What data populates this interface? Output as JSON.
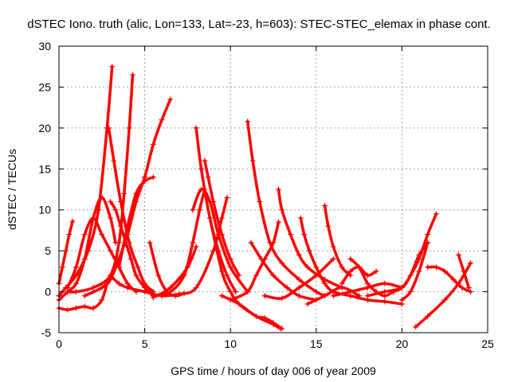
{
  "chart_data": {
    "type": "scatter",
    "title": "dSTEC Iono. truth (alic, Lon=133, Lat=-23, h=603): STEC-STEC_elemax in phase cont.",
    "xlabel": "GPS time / hours of day 006 of year 2009",
    "ylabel": "dSTEC  / TECUs",
    "xlim": [
      0,
      25
    ],
    "ylim": [
      -5,
      30
    ],
    "xticks": [
      0,
      5,
      10,
      15,
      20,
      25
    ],
    "yticks": [
      -5,
      0,
      5,
      10,
      15,
      20,
      25,
      30
    ],
    "grid": true,
    "marker": "+",
    "color": "#ff0000",
    "series": [
      {
        "x": [
          0.0,
          0.2,
          0.4,
          0.6,
          0.8
        ],
        "y": [
          1.0,
          3.0,
          5.0,
          7.0,
          8.6
        ]
      },
      {
        "x": [
          0.0,
          0.4,
          1.0,
          1.7,
          2.3,
          2.8,
          3.1
        ],
        "y": [
          -0.5,
          0.5,
          2.0,
          5.0,
          10.0,
          20.0,
          27.5
        ]
      },
      {
        "x": [
          0.0,
          0.5,
          1.0,
          1.5,
          2.0,
          2.5,
          2.8
        ],
        "y": [
          -2.0,
          -2.2,
          -2.0,
          -1.8,
          -2.0,
          -1.0,
          1.0
        ]
      },
      {
        "x": [
          0.0,
          0.5,
          1.0,
          1.5,
          2.0,
          2.5,
          3.0,
          3.3
        ],
        "y": [
          -1.0,
          0.0,
          1.0,
          4.0,
          9.0,
          11.5,
          9.0,
          6.0
        ]
      },
      {
        "x": [
          0.5,
          1.0,
          1.5,
          2.0,
          2.5,
          3.0,
          3.5,
          4.0,
          4.5
        ],
        "y": [
          0.5,
          3.0,
          7.0,
          9.0,
          7.0,
          5.0,
          3.0,
          1.0,
          0.0
        ]
      },
      {
        "x": [
          0.5,
          1.0,
          2.0,
          3.0,
          3.5,
          3.8,
          4.1,
          4.3
        ],
        "y": [
          0.0,
          0.0,
          0.5,
          2.0,
          6.0,
          12.0,
          20.0,
          26.5
        ]
      },
      {
        "x": [
          2.9,
          3.2,
          3.6,
          4.1,
          4.6,
          5.0,
          5.5
        ],
        "y": [
          20.0,
          16.0,
          11.0,
          6.0,
          3.0,
          1.0,
          0.0
        ]
      },
      {
        "x": [
          3.0,
          3.3,
          3.6,
          3.9,
          4.2,
          4.5,
          5.0,
          5.5
        ],
        "y": [
          11.0,
          10.0,
          8.0,
          6.0,
          4.0,
          2.0,
          0.5,
          -0.5
        ]
      },
      {
        "x": [
          1.5,
          2.5,
          3.0,
          3.5,
          4.0,
          4.5,
          5.0,
          5.5,
          6.0,
          6.5
        ],
        "y": [
          -0.5,
          0.5,
          1.5,
          4.0,
          7.0,
          11.0,
          14.0,
          18.0,
          21.0,
          23.5
        ]
      },
      {
        "x": [
          3.0,
          3.5,
          4.0,
          5.0,
          6.0,
          7.0
        ],
        "y": [
          2.0,
          1.0,
          0.5,
          0.0,
          -0.5,
          -0.3
        ]
      },
      {
        "x": [
          3.5,
          4.0,
          4.5,
          5.0,
          5.5
        ],
        "y": [
          3.0,
          8.0,
          12.0,
          13.5,
          14.0
        ]
      },
      {
        "x": [
          5.3,
          5.8,
          6.3,
          6.8,
          7.3
        ],
        "y": [
          6.0,
          2.0,
          0.0,
          -0.5,
          -0.2
        ]
      },
      {
        "x": [
          5.5,
          6.5,
          7.3,
          7.8,
          8.2,
          8.5
        ],
        "y": [
          -0.5,
          0.0,
          2.0,
          6.0,
          10.0,
          12.5
        ]
      },
      {
        "x": [
          5.5,
          6.5,
          7.5,
          8.0
        ],
        "y": [
          -0.7,
          0.5,
          3.0,
          5.5
        ]
      },
      {
        "x": [
          6.0,
          7.0,
          8.0,
          9.0,
          9.5,
          9.8
        ],
        "y": [
          -0.5,
          -0.3,
          0.5,
          5.0,
          9.0,
          11.5
        ]
      },
      {
        "x": [
          8.0,
          8.3,
          8.8,
          9.3,
          9.8,
          10.3
        ],
        "y": [
          20.0,
          15.0,
          9.0,
          5.0,
          2.0,
          0.0
        ]
      },
      {
        "x": [
          7.8,
          8.3,
          8.8,
          9.3,
          10.0,
          11.0
        ],
        "y": [
          10.0,
          12.5,
          11.0,
          7.0,
          3.0,
          0.0
        ]
      },
      {
        "x": [
          8.5,
          8.7,
          9.0,
          9.5,
          10.0,
          10.5
        ],
        "y": [
          16.0,
          14.0,
          11.0,
          7.0,
          4.0,
          2.0
        ]
      },
      {
        "x": [
          8.8,
          9.5,
          10.0,
          10.5,
          11.5,
          12.5,
          12.9
        ],
        "y": [
          9.0,
          2.5,
          0.0,
          -1.5,
          -3.0,
          -4.0,
          -4.5
        ]
      },
      {
        "x": [
          9.5,
          10.5,
          11.5,
          12.0,
          12.5,
          13.0
        ],
        "y": [
          -0.5,
          -1.5,
          -3.0,
          -3.2,
          -3.8,
          -4.5
        ]
      },
      {
        "x": [
          10.0,
          11.0,
          11.5,
          12.0,
          12.5,
          12.8
        ],
        "y": [
          -1.0,
          0.0,
          2.0,
          4.0,
          6.0,
          8.5
        ]
      },
      {
        "x": [
          11.0,
          11.3,
          11.7,
          12.3,
          13.0,
          14.0,
          15.0,
          15.5
        ],
        "y": [
          20.8,
          16.0,
          11.0,
          6.0,
          3.5,
          1.5,
          0.0,
          -0.5
        ]
      },
      {
        "x": [
          11.2,
          11.8,
          12.5,
          13.3,
          14.0,
          15.0
        ],
        "y": [
          6.0,
          4.0,
          2.0,
          0.5,
          -0.5,
          -1.0
        ]
      },
      {
        "x": [
          12.0,
          13.0,
          14.0,
          15.0,
          16.0
        ],
        "y": [
          -0.5,
          -0.8,
          0.5,
          2.0,
          4.0
        ]
      },
      {
        "x": [
          12.8,
          13.0,
          13.5,
          14.0,
          14.5,
          15.5,
          16.5
        ],
        "y": [
          12.5,
          10.0,
          7.0,
          4.5,
          3.0,
          1.5,
          0.5
        ]
      },
      {
        "x": [
          14.1,
          14.3,
          14.6,
          15.0,
          15.5,
          16.0,
          17.0
        ],
        "y": [
          9.0,
          7.0,
          5.0,
          3.0,
          1.0,
          0.0,
          -0.5
        ]
      },
      {
        "x": [
          14.5,
          15.5,
          16.5,
          17.5
        ],
        "y": [
          -1.5,
          -0.5,
          0.5,
          -0.5
        ]
      },
      {
        "x": [
          15.5,
          15.7,
          16.0,
          16.5,
          17.0
        ],
        "y": [
          10.5,
          8.0,
          5.5,
          3.0,
          2.0
        ]
      },
      {
        "x": [
          16.0,
          17.0,
          18.0,
          19.0,
          20.0
        ],
        "y": [
          -0.5,
          0.0,
          0.5,
          1.0,
          0.5
        ]
      },
      {
        "x": [
          16.5,
          17.0,
          17.5,
          18.0,
          18.5
        ],
        "y": [
          1.0,
          2.5,
          3.0,
          2.0,
          2.5
        ]
      },
      {
        "x": [
          17.0,
          17.5,
          18.0,
          18.5,
          19.0,
          19.5
        ],
        "y": [
          4.0,
          3.0,
          1.0,
          0.0,
          -0.5,
          0.0
        ]
      },
      {
        "x": [
          17.0,
          18.0,
          19.0,
          20.0
        ],
        "y": [
          -0.5,
          -1.0,
          -1.2,
          -1.5
        ]
      },
      {
        "x": [
          18.0,
          19.0,
          20.0,
          20.5,
          21.0,
          21.5,
          22.0
        ],
        "y": [
          -0.5,
          0.0,
          0.5,
          2.0,
          4.0,
          7.0,
          9.5
        ]
      },
      {
        "x": [
          19.5,
          20.0,
          20.5,
          21.0,
          21.5
        ],
        "y": [
          0.0,
          0.5,
          2.0,
          4.5,
          6.0
        ]
      },
      {
        "x": [
          20.0,
          20.5,
          21.0,
          21.5
        ],
        "y": [
          -1.0,
          0.0,
          2.5,
          6.0
        ]
      },
      {
        "x": [
          20.8,
          21.5,
          22.5,
          23.3,
          24.0
        ],
        "y": [
          -4.3,
          -3.0,
          -1.0,
          1.0,
          3.5
        ]
      },
      {
        "x": [
          21.5,
          22.0,
          22.5,
          23.0,
          23.5,
          24.0
        ],
        "y": [
          3.0,
          3.0,
          2.5,
          1.5,
          0.5,
          0.0
        ]
      },
      {
        "x": [
          23.3,
          23.6,
          23.9
        ],
        "y": [
          4.5,
          2.5,
          0.5
        ]
      }
    ]
  }
}
